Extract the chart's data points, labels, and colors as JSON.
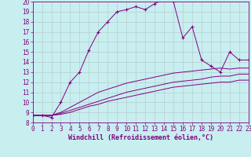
{
  "xlabel": "Windchill (Refroidissement éolien,°C)",
  "bg_color": "#c8eef0",
  "line_color": "#800080",
  "grid_color": "#b0c8c8",
  "xlim": [
    0,
    23
  ],
  "ylim": [
    8,
    20
  ],
  "xticks": [
    0,
    1,
    2,
    3,
    4,
    5,
    6,
    7,
    8,
    9,
    10,
    11,
    12,
    13,
    14,
    15,
    16,
    17,
    18,
    19,
    20,
    21,
    22,
    23
  ],
  "yticks": [
    8,
    9,
    10,
    11,
    12,
    13,
    14,
    15,
    16,
    17,
    18,
    19,
    20
  ],
  "series1_x": [
    0,
    1,
    2,
    3,
    4,
    5,
    6,
    7,
    8,
    9,
    10,
    11,
    12,
    13,
    14,
    15,
    16,
    17,
    18,
    19,
    20,
    21,
    22,
    23
  ],
  "series1_y": [
    8.7,
    8.7,
    8.5,
    10.0,
    12.0,
    13.0,
    15.2,
    17.0,
    18.0,
    19.0,
    19.2,
    19.5,
    19.2,
    19.8,
    20.2,
    20.0,
    16.4,
    17.5,
    14.2,
    13.6,
    13.0,
    15.0,
    14.2,
    14.2
  ],
  "series2_x": [
    0,
    1,
    2,
    3,
    4,
    5,
    6,
    7,
    8,
    9,
    10,
    11,
    12,
    13,
    14,
    15,
    16,
    17,
    18,
    19,
    20,
    21,
    22,
    23
  ],
  "series2_y": [
    8.7,
    8.7,
    8.7,
    9.0,
    9.5,
    10.0,
    10.5,
    11.0,
    11.3,
    11.6,
    11.9,
    12.1,
    12.3,
    12.5,
    12.7,
    12.9,
    13.0,
    13.1,
    13.2,
    13.3,
    13.4,
    13.3,
    13.4,
    13.4
  ],
  "series3_x": [
    0,
    1,
    2,
    3,
    4,
    5,
    6,
    7,
    8,
    9,
    10,
    11,
    12,
    13,
    14,
    15,
    16,
    17,
    18,
    19,
    20,
    21,
    22,
    23
  ],
  "series3_y": [
    8.7,
    8.7,
    8.7,
    8.9,
    9.2,
    9.5,
    9.8,
    10.1,
    10.4,
    10.7,
    11.0,
    11.2,
    11.4,
    11.6,
    11.8,
    12.0,
    12.1,
    12.2,
    12.3,
    12.5,
    12.6,
    12.6,
    12.8,
    12.8
  ],
  "series4_x": [
    0,
    1,
    2,
    3,
    4,
    5,
    6,
    7,
    8,
    9,
    10,
    11,
    12,
    13,
    14,
    15,
    16,
    17,
    18,
    19,
    20,
    21,
    22,
    23
  ],
  "series4_y": [
    8.7,
    8.7,
    8.7,
    8.8,
    9.0,
    9.3,
    9.6,
    9.8,
    10.1,
    10.3,
    10.5,
    10.7,
    10.9,
    11.1,
    11.3,
    11.5,
    11.6,
    11.7,
    11.8,
    11.9,
    12.0,
    12.0,
    12.2,
    12.2
  ],
  "marker_x": [
    0,
    1,
    2,
    3,
    4,
    5,
    6,
    7,
    8,
    9,
    10,
    11,
    12,
    13,
    14,
    15,
    16,
    17,
    18,
    19,
    20,
    21,
    22,
    23
  ],
  "tick_fontsize": 5.5,
  "xlabel_fontsize": 6.0
}
